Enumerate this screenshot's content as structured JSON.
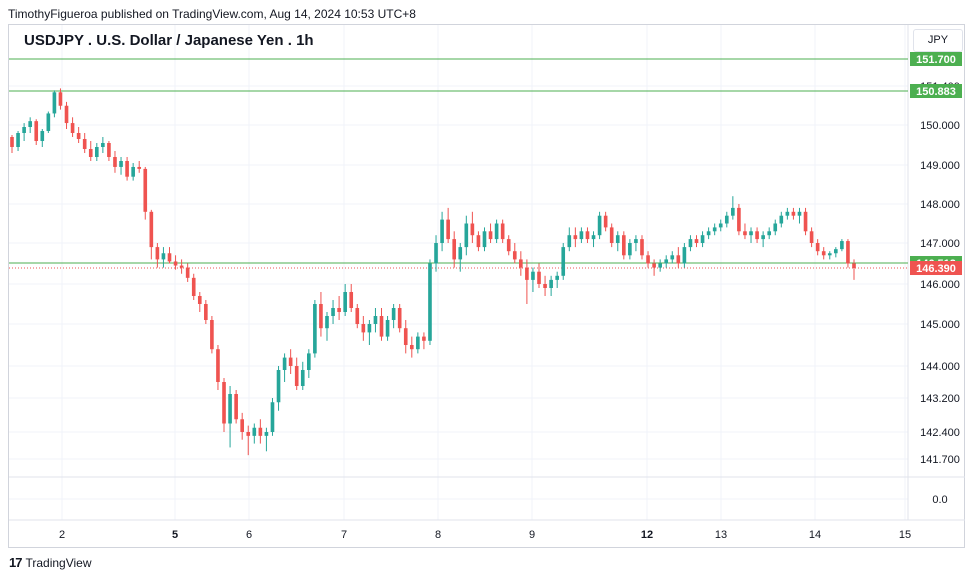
{
  "header": {
    "publisher": "TimothyFigueroa published on TradingView.com, Aug 14, 2024 10:53 UTC+8"
  },
  "chart_title": "USDJPY . U.S. Dollar / Japanese Yen . 1h",
  "currency_label": "JPY",
  "footer": {
    "brand": "TradingView"
  },
  "colors": {
    "up": "#26a69a",
    "down": "#ef5350",
    "level": "#4caf50",
    "last_price": "#ef5350"
  },
  "chart_data": {
    "type": "candlestick",
    "title": "USDJPY . U.S. Dollar / Japanese Yen . 1h",
    "y_ticks": [
      "151.400",
      "150.000",
      "149.000",
      "148.000",
      "147.000",
      "146.000",
      "145.000",
      "144.000",
      "143.200",
      "142.400",
      "141.700",
      "0.0"
    ],
    "x_ticks": [
      {
        "label": "2",
        "bold": false
      },
      {
        "label": "5",
        "bold": true
      },
      {
        "label": "6",
        "bold": false
      },
      {
        "label": "7",
        "bold": false
      },
      {
        "label": "8",
        "bold": false
      },
      {
        "label": "9",
        "bold": false
      },
      {
        "label": "12",
        "bold": true
      },
      {
        "label": "13",
        "bold": false
      },
      {
        "label": "14",
        "bold": false
      },
      {
        "label": "15",
        "bold": false
      }
    ],
    "horizontal_levels": [
      {
        "value": 151.7,
        "label": "151.700",
        "style": "solid"
      },
      {
        "value": 150.883,
        "label": "150.883",
        "style": "solid"
      },
      {
        "value": 146.512,
        "label": "146.512",
        "style": "solid"
      }
    ],
    "last_price": {
      "value": 146.39,
      "label": "146.390"
    },
    "grid": true,
    "candles": [
      [
        149.7,
        149.75,
        149.3,
        149.45
      ],
      [
        149.45,
        149.85,
        149.35,
        149.8
      ],
      [
        149.8,
        150.05,
        149.6,
        149.95
      ],
      [
        149.95,
        150.2,
        149.8,
        150.1
      ],
      [
        150.1,
        150.15,
        149.5,
        149.6
      ],
      [
        149.6,
        149.9,
        149.45,
        149.85
      ],
      [
        149.85,
        150.35,
        149.8,
        150.3
      ],
      [
        150.3,
        150.9,
        150.2,
        150.85
      ],
      [
        150.85,
        150.95,
        150.4,
        150.5
      ],
      [
        150.5,
        150.6,
        149.9,
        150.05
      ],
      [
        150.05,
        150.2,
        149.7,
        149.8
      ],
      [
        149.8,
        149.95,
        149.55,
        149.65
      ],
      [
        149.65,
        149.8,
        149.3,
        149.4
      ],
      [
        149.4,
        149.6,
        149.1,
        149.2
      ],
      [
        149.2,
        149.55,
        149.1,
        149.45
      ],
      [
        149.45,
        149.7,
        149.3,
        149.55
      ],
      [
        149.55,
        149.6,
        149.1,
        149.2
      ],
      [
        149.2,
        149.35,
        148.8,
        148.95
      ],
      [
        148.95,
        149.2,
        148.75,
        149.1
      ],
      [
        149.1,
        149.2,
        148.6,
        148.7
      ],
      [
        148.7,
        149.05,
        148.6,
        148.95
      ],
      [
        148.95,
        149.1,
        148.8,
        148.9
      ],
      [
        148.9,
        148.95,
        147.6,
        147.8
      ],
      [
        147.8,
        147.85,
        146.6,
        146.9
      ],
      [
        146.9,
        147.0,
        146.4,
        146.6
      ],
      [
        146.6,
        146.9,
        146.4,
        146.75
      ],
      [
        146.75,
        146.9,
        146.5,
        146.55
      ],
      [
        146.55,
        146.7,
        146.35,
        146.45
      ],
      [
        146.45,
        146.6,
        146.25,
        146.4
      ],
      [
        146.4,
        146.5,
        146.05,
        146.15
      ],
      [
        146.15,
        146.25,
        145.6,
        145.7
      ],
      [
        145.7,
        145.8,
        145.3,
        145.5
      ],
      [
        145.5,
        145.6,
        145.0,
        145.1
      ],
      [
        145.1,
        145.2,
        144.3,
        144.4
      ],
      [
        144.4,
        144.5,
        143.4,
        143.6
      ],
      [
        143.6,
        143.7,
        142.4,
        142.6
      ],
      [
        142.6,
        143.5,
        142.0,
        143.3
      ],
      [
        143.3,
        143.4,
        142.6,
        142.7
      ],
      [
        142.7,
        142.85,
        142.2,
        142.4
      ],
      [
        142.4,
        142.55,
        141.8,
        142.3
      ],
      [
        142.3,
        142.6,
        142.1,
        142.5
      ],
      [
        142.5,
        142.7,
        142.1,
        142.3
      ],
      [
        142.3,
        142.5,
        141.9,
        142.4
      ],
      [
        142.4,
        143.2,
        142.3,
        143.1
      ],
      [
        143.1,
        144.0,
        142.9,
        143.9
      ],
      [
        143.9,
        144.3,
        143.6,
        144.2
      ],
      [
        144.2,
        144.4,
        143.8,
        144.0
      ],
      [
        144.0,
        144.2,
        143.4,
        143.5
      ],
      [
        143.5,
        144.1,
        143.4,
        143.9
      ],
      [
        143.9,
        144.4,
        143.7,
        144.3
      ],
      [
        144.3,
        145.6,
        144.2,
        145.5
      ],
      [
        145.5,
        145.8,
        144.7,
        144.9
      ],
      [
        144.9,
        145.3,
        144.6,
        145.2
      ],
      [
        145.2,
        145.6,
        145.0,
        145.4
      ],
      [
        145.4,
        145.7,
        145.1,
        145.3
      ],
      [
        145.3,
        146.0,
        145.2,
        145.8
      ],
      [
        145.8,
        146.0,
        145.3,
        145.4
      ],
      [
        145.4,
        145.5,
        144.9,
        145.0
      ],
      [
        145.0,
        145.2,
        144.6,
        144.8
      ],
      [
        144.8,
        145.1,
        144.5,
        145.0
      ],
      [
        145.0,
        145.4,
        144.8,
        145.2
      ],
      [
        145.2,
        145.4,
        144.6,
        144.7
      ],
      [
        144.7,
        145.2,
        144.6,
        145.1
      ],
      [
        145.1,
        145.5,
        144.9,
        145.4
      ],
      [
        145.4,
        145.5,
        144.8,
        144.9
      ],
      [
        144.9,
        145.1,
        144.3,
        144.5
      ],
      [
        144.5,
        144.7,
        144.2,
        144.4
      ],
      [
        144.4,
        144.8,
        144.3,
        144.7
      ],
      [
        144.7,
        144.8,
        144.4,
        144.6
      ],
      [
        144.6,
        146.6,
        144.5,
        146.5
      ],
      [
        146.5,
        147.2,
        146.3,
        147.0
      ],
      [
        147.0,
        147.8,
        146.8,
        147.6
      ],
      [
        147.6,
        147.9,
        147.0,
        147.1
      ],
      [
        147.1,
        147.3,
        146.4,
        146.6
      ],
      [
        146.6,
        147.0,
        146.3,
        146.9
      ],
      [
        146.9,
        147.7,
        146.7,
        147.5
      ],
      [
        147.5,
        147.8,
        147.0,
        147.2
      ],
      [
        147.2,
        147.3,
        146.8,
        146.9
      ],
      [
        146.9,
        147.4,
        146.8,
        147.3
      ],
      [
        147.3,
        147.5,
        147.0,
        147.1
      ],
      [
        147.1,
        147.6,
        147.0,
        147.5
      ],
      [
        147.5,
        147.6,
        147.0,
        147.1
      ],
      [
        147.1,
        147.2,
        146.7,
        146.8
      ],
      [
        146.8,
        147.0,
        146.5,
        146.6
      ],
      [
        146.6,
        146.8,
        146.2,
        146.4
      ],
      [
        146.4,
        146.6,
        145.5,
        146.1
      ],
      [
        146.1,
        146.4,
        145.8,
        146.3
      ],
      [
        146.3,
        146.5,
        145.9,
        146.0
      ],
      [
        146.0,
        146.2,
        145.7,
        145.9
      ],
      [
        145.9,
        146.2,
        145.7,
        146.1
      ],
      [
        146.1,
        146.3,
        145.9,
        146.2
      ],
      [
        146.2,
        147.0,
        146.1,
        146.9
      ],
      [
        146.9,
        147.4,
        146.8,
        147.2
      ],
      [
        147.2,
        147.4,
        146.9,
        147.1
      ],
      [
        147.1,
        147.4,
        147.0,
        147.3
      ],
      [
        147.3,
        147.4,
        147.0,
        147.1
      ],
      [
        147.1,
        147.3,
        146.9,
        147.2
      ],
      [
        147.2,
        147.8,
        147.1,
        147.7
      ],
      [
        147.7,
        147.8,
        147.3,
        147.4
      ],
      [
        147.4,
        147.5,
        146.9,
        147.0
      ],
      [
        147.0,
        147.3,
        146.8,
        147.2
      ],
      [
        147.2,
        147.3,
        146.6,
        146.7
      ],
      [
        146.7,
        147.1,
        146.6,
        147.0
      ],
      [
        147.0,
        147.2,
        146.8,
        147.1
      ],
      [
        147.1,
        147.2,
        146.6,
        146.7
      ],
      [
        146.7,
        146.8,
        146.4,
        146.5
      ],
      [
        146.5,
        146.6,
        146.2,
        146.4
      ],
      [
        146.4,
        146.6,
        146.3,
        146.5
      ],
      [
        146.5,
        146.7,
        146.4,
        146.6
      ],
      [
        146.6,
        146.8,
        146.5,
        146.7
      ],
      [
        146.7,
        146.9,
        146.4,
        146.5
      ],
      [
        146.5,
        147.0,
        146.4,
        146.9
      ],
      [
        146.9,
        147.2,
        146.8,
        147.1
      ],
      [
        147.1,
        147.2,
        146.9,
        147.0
      ],
      [
        147.0,
        147.3,
        146.9,
        147.2
      ],
      [
        147.2,
        147.4,
        147.1,
        147.3
      ],
      [
        147.3,
        147.5,
        147.2,
        147.4
      ],
      [
        147.4,
        147.6,
        147.3,
        147.5
      ],
      [
        147.5,
        147.8,
        147.4,
        147.7
      ],
      [
        147.7,
        148.2,
        147.6,
        147.9
      ],
      [
        147.9,
        148.0,
        147.2,
        147.3
      ],
      [
        147.3,
        147.5,
        147.1,
        147.2
      ],
      [
        147.2,
        147.4,
        147.0,
        147.3
      ],
      [
        147.3,
        147.4,
        147.0,
        147.1
      ],
      [
        147.1,
        147.3,
        146.9,
        147.2
      ],
      [
        147.2,
        147.4,
        147.1,
        147.3
      ],
      [
        147.3,
        147.6,
        147.2,
        147.5
      ],
      [
        147.5,
        147.8,
        147.4,
        147.7
      ],
      [
        147.7,
        147.9,
        147.6,
        147.8
      ],
      [
        147.8,
        147.9,
        147.6,
        147.7
      ],
      [
        147.7,
        147.9,
        147.5,
        147.8
      ],
      [
        147.8,
        147.9,
        147.2,
        147.3
      ],
      [
        147.3,
        147.4,
        146.9,
        147.0
      ],
      [
        147.0,
        147.1,
        146.7,
        146.8
      ],
      [
        146.8,
        146.9,
        146.6,
        146.7
      ],
      [
        146.7,
        146.8,
        146.6,
        146.75
      ],
      [
        146.75,
        146.9,
        146.65,
        146.85
      ],
      [
        146.85,
        147.1,
        146.8,
        147.05
      ],
      [
        147.05,
        147.1,
        146.4,
        146.5
      ],
      [
        146.5,
        146.6,
        146.1,
        146.39
      ]
    ]
  }
}
